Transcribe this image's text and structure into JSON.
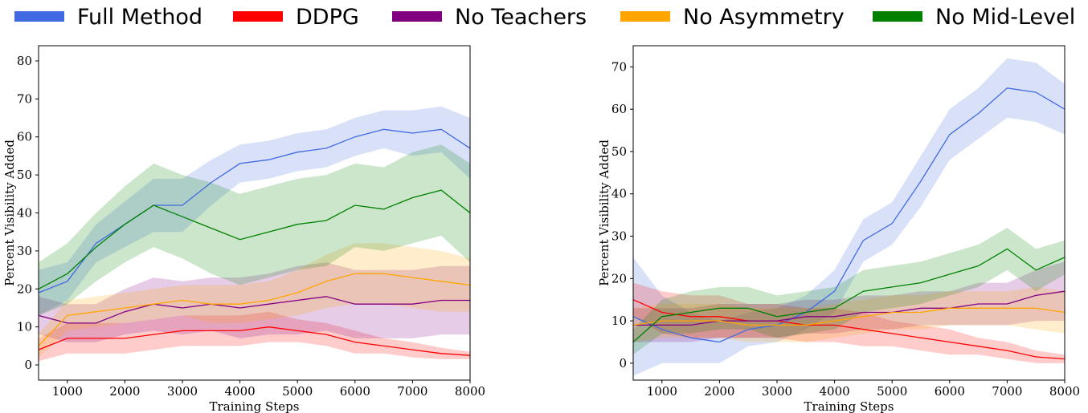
{
  "legend": [
    {
      "name": "Full Method",
      "color": "#4169e1"
    },
    {
      "name": "DDPG",
      "color": "#ff0000"
    },
    {
      "name": "No Teachers",
      "color": "#800080"
    },
    {
      "name": "No Asymmetry",
      "color": "#ffa500"
    },
    {
      "name": "No Mid-Level",
      "color": "#008000"
    }
  ],
  "chart_data": [
    {
      "type": "line",
      "xlabel": "Training Steps",
      "ylabel": "Percent Visibility Added",
      "xlim": [
        500,
        8000
      ],
      "ylim": [
        -4,
        84
      ],
      "xticks": [
        1000,
        2000,
        3000,
        4000,
        5000,
        6000,
        7000,
        8000
      ],
      "yticks": [
        0,
        10,
        20,
        30,
        40,
        50,
        60,
        70,
        80
      ],
      "grid": false,
      "x": [
        500,
        1000,
        1500,
        2000,
        2500,
        3000,
        3500,
        4000,
        4500,
        5000,
        5500,
        6000,
        6500,
        7000,
        7500,
        8000
      ],
      "series": [
        {
          "name": "Full Method",
          "color": "#4169e1",
          "values": [
            19,
            22,
            32,
            37,
            42,
            42,
            48,
            53,
            54,
            56,
            57,
            60,
            62,
            61,
            62,
            57
          ],
          "band": [
            6,
            5,
            5,
            6,
            7,
            7,
            6,
            5,
            5,
            5,
            5,
            5,
            5,
            6,
            6,
            8
          ]
        },
        {
          "name": "DDPG",
          "color": "#ff0000",
          "values": [
            4,
            7,
            7,
            7,
            8,
            9,
            9,
            9,
            10,
            9,
            8,
            6,
            5,
            4,
            3,
            2.5
          ],
          "band": [
            3,
            4,
            4,
            4,
            4,
            4,
            4,
            4,
            4,
            3,
            3,
            3,
            2,
            2,
            1.5,
            1
          ]
        },
        {
          "name": "No Teachers",
          "color": "#800080",
          "values": [
            13,
            11,
            11,
            14,
            16,
            15,
            16,
            15,
            16,
            17,
            18,
            16,
            16,
            16,
            17,
            17
          ],
          "band": [
            5,
            5,
            5,
            6,
            7,
            7,
            7,
            8,
            8,
            9,
            9,
            9,
            9,
            9,
            9,
            9
          ]
        },
        {
          "name": "No Asymmetry",
          "color": "#ffa500",
          "values": [
            5,
            13,
            14,
            15,
            16,
            17,
            16,
            16,
            17,
            19,
            22,
            24,
            24,
            23,
            22,
            21
          ],
          "band": [
            3,
            4,
            4,
            4,
            4,
            4,
            5,
            5,
            5,
            6,
            7,
            8,
            8,
            8,
            8,
            7
          ]
        },
        {
          "name": "No Mid-Level",
          "color": "#008000",
          "values": [
            20,
            24,
            31,
            37,
            42,
            39,
            36,
            33,
            35,
            37,
            38,
            42,
            41,
            44,
            46,
            40
          ],
          "band": [
            7,
            8,
            9,
            10,
            11,
            11,
            12,
            12,
            12,
            12,
            12,
            11,
            11,
            12,
            12,
            13
          ]
        }
      ]
    },
    {
      "type": "line",
      "xlabel": "Training Steps",
      "ylabel": "Percent Visibility Added",
      "xlim": [
        500,
        8000
      ],
      "ylim": [
        -4,
        75
      ],
      "xticks": [
        1000,
        2000,
        3000,
        4000,
        5000,
        6000,
        7000,
        8000
      ],
      "yticks": [
        0,
        10,
        20,
        30,
        40,
        50,
        60,
        70
      ],
      "grid": false,
      "x": [
        500,
        1000,
        1500,
        2000,
        2500,
        3000,
        3500,
        4000,
        4500,
        5000,
        5500,
        6000,
        6500,
        7000,
        7500,
        8000
      ],
      "series": [
        {
          "name": "Full Method",
          "color": "#4169e1",
          "values": [
            11,
            8,
            6,
            5,
            8,
            9,
            12,
            17,
            29,
            33,
            43,
            54,
            59,
            65,
            64,
            60
          ],
          "band": [
            14,
            8,
            6,
            5,
            4,
            4,
            4,
            5,
            5,
            5,
            6,
            6,
            6,
            7,
            7,
            6
          ]
        },
        {
          "name": "DDPG",
          "color": "#ff0000",
          "values": [
            15,
            12,
            11,
            11,
            10,
            10,
            9,
            9,
            8,
            7,
            6,
            5,
            4,
            3,
            1.5,
            1
          ],
          "band": [
            4,
            5,
            5,
            5,
            4,
            4,
            4,
            4,
            4,
            3,
            3,
            3,
            2,
            2,
            1.5,
            1
          ]
        },
        {
          "name": "No Teachers",
          "color": "#800080",
          "values": [
            9,
            9,
            9,
            10,
            10,
            10,
            11,
            11,
            12,
            12,
            13,
            13,
            14,
            14,
            16,
            17
          ],
          "band": [
            4,
            4,
            4,
            4,
            4,
            4,
            4,
            4,
            4,
            4,
            4,
            4,
            5,
            5,
            6,
            7
          ]
        },
        {
          "name": "No Asymmetry",
          "color": "#ffa500",
          "values": [
            9,
            10,
            10,
            10,
            9,
            9,
            9,
            10,
            11,
            12,
            12,
            13,
            13,
            13,
            13,
            12
          ],
          "band": [
            4,
            4,
            4,
            4,
            4,
            4,
            4,
            4,
            4,
            4,
            4,
            4,
            4,
            4,
            5,
            5
          ]
        },
        {
          "name": "No Mid-Level",
          "color": "#008000",
          "values": [
            5,
            11,
            12,
            13,
            13,
            11,
            12,
            13,
            17,
            18,
            19,
            21,
            23,
            27,
            22,
            25
          ],
          "band": [
            3,
            4,
            5,
            5,
            5,
            5,
            5,
            5,
            5,
            5,
            5,
            5,
            5,
            5,
            5,
            4
          ]
        }
      ]
    }
  ]
}
